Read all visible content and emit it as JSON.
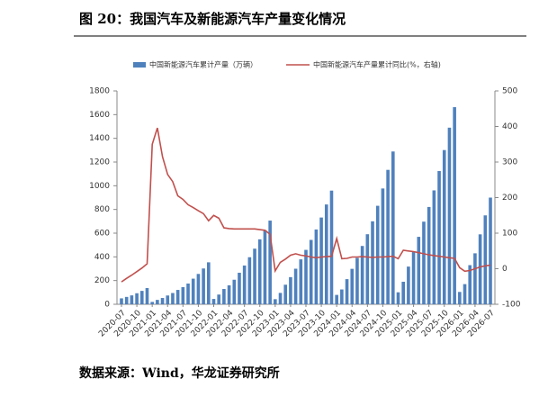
{
  "chart_data": {
    "type": "bar",
    "title": "图 20：我国汽车及新能源汽车产量变化情况",
    "source": "数据来源：Wind，华龙证券研究所",
    "categories": [
      "2020-07",
      null,
      null,
      "2020-10",
      null,
      null,
      "2021-01",
      null,
      null,
      "2021-04",
      null,
      null,
      "2021-07",
      null,
      null,
      "2021-10",
      null,
      null,
      "2022-01",
      null,
      null,
      "2022-04",
      null,
      null,
      "2022-07",
      null,
      null,
      "2022-10",
      null,
      null,
      "2023-01",
      null,
      null,
      "2023-04",
      null,
      null,
      "2023-07",
      null,
      null,
      "2023-10",
      null,
      null,
      "2024-01",
      null,
      null,
      "2024-04",
      null,
      null,
      "2024-07",
      null,
      null,
      "2024-10",
      null,
      null,
      "2025-01",
      null,
      null,
      "2025-04",
      null,
      null,
      "2025-07",
      null,
      null,
      "2025-10",
      null,
      null,
      "2026-01",
      null,
      null,
      "2026-04",
      null,
      null,
      "2026-07"
    ],
    "series": [
      {
        "name": "中国新能源汽车累计产量（万辆）",
        "type": "bar",
        "color": "#4f81bd",
        "values": [
          50,
          62,
          75,
          93,
          113,
          137,
          20,
          37,
          53,
          74,
          95,
          121,
          145,
          175,
          216,
          256,
          302,
          354,
          45,
          82,
          129,
          160,
          207,
          266,
          327,
          397,
          469,
          548,
          625,
          706,
          43,
          96,
          165,
          229,
          300,
          379,
          459,
          543,
          631,
          732,
          842,
          959,
          79,
          125,
          212,
          299,
          391,
          492,
          591,
          700,
          831,
          977,
          1134,
          1289,
          101,
          190,
          318,
          443,
          569,
          697,
          821,
          961,
          1124,
          1301,
          1490,
          1663,
          104,
          170,
          330,
          430,
          590,
          750,
          900
        ]
      },
      {
        "name": "中国新能源汽车产量累计同比(%，右轴)",
        "type": "line",
        "axis": "y2",
        "color": "#c0504d",
        "values": [
          -37,
          -27,
          -18,
          -8,
          2,
          14,
          350,
          396,
          315,
          265,
          245,
          205,
          195,
          180,
          172,
          163,
          155,
          135,
          150,
          142,
          115,
          113,
          112,
          112,
          112,
          112,
          112,
          110,
          108,
          97,
          -6,
          18,
          27,
          38,
          42,
          38,
          36,
          33,
          31,
          33,
          34,
          35,
          85,
          28,
          29,
          33,
          33,
          34,
          33,
          32,
          33,
          33,
          34,
          35,
          28,
          52,
          50,
          48,
          45,
          42,
          39,
          37,
          35,
          33,
          31,
          29,
          3,
          -7,
          -5,
          0,
          5,
          8,
          10
        ]
      }
    ],
    "ylim": [
      0,
      1800
    ],
    "yticks": [
      0,
      200,
      400,
      600,
      800,
      1000,
      1200,
      1400,
      1600,
      1800
    ],
    "y2lim": [
      -100,
      500
    ],
    "y2ticks": [
      -100,
      0,
      100,
      200,
      300,
      400,
      500
    ],
    "grid": false,
    "legend": "top"
  }
}
